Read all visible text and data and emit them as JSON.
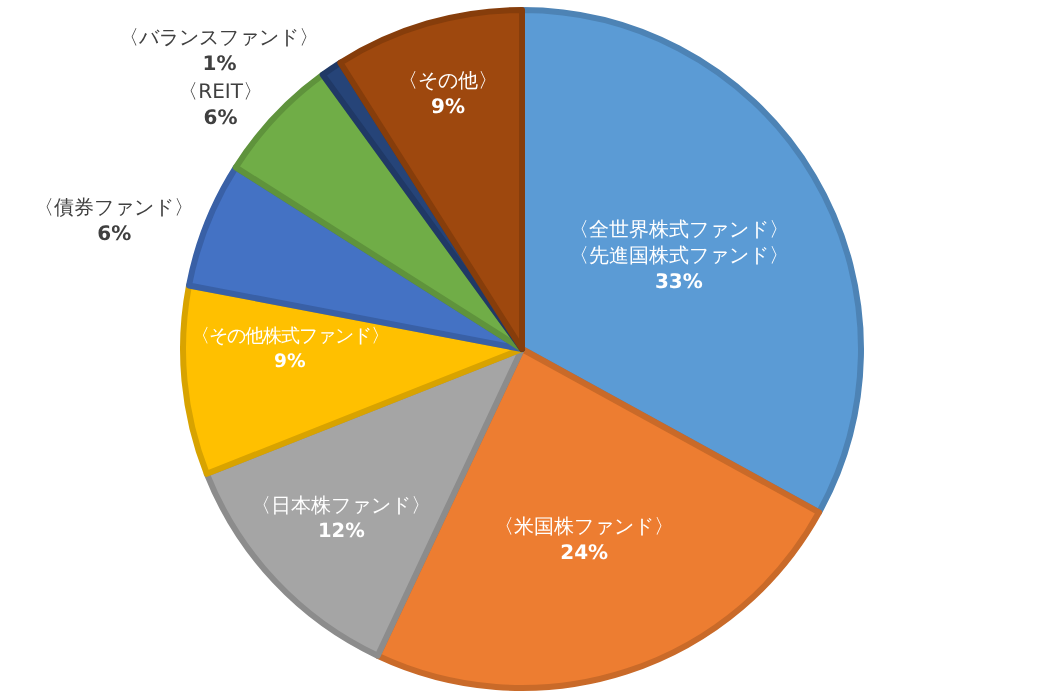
{
  "chart_data": {
    "type": "pie",
    "categories": [
      "〈全世界株式ファンド〉〈先進国株式ファンド〉",
      "〈米国株ファンド〉",
      "〈日本株ファンド〉",
      "〈その他株式ファンド〉",
      "〈債券ファンド〉",
      "〈REIT〉",
      "〈バランスファンド〉",
      "〈その他〉"
    ],
    "values": [
      33,
      24,
      12,
      9,
      6,
      6,
      1,
      9
    ],
    "value_labels": [
      "33%",
      "24%",
      "12%",
      "9%",
      "6%",
      "6%",
      "1%",
      "9%"
    ],
    "colors": [
      "#5b9bd5",
      "#ed7d31",
      "#a5a5a5",
      "#ffc000",
      "#4472c4",
      "#70ad47",
      "#264478",
      "#9e480e"
    ],
    "legend": false
  }
}
